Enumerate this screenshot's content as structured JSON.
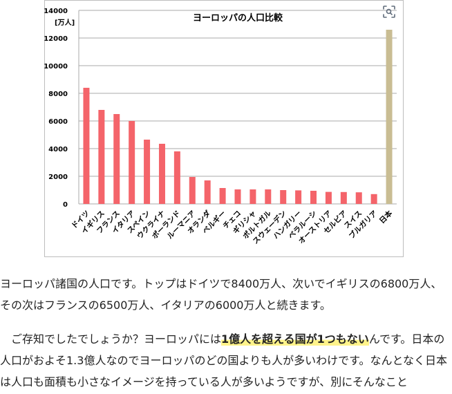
{
  "chart_data": {
    "type": "bar",
    "title": "ヨーロッパの人口比較",
    "ylabel": "[万人]",
    "xlabel": "",
    "ylim": [
      0,
      14000
    ],
    "yticks": [
      0,
      2000,
      4000,
      6000,
      8000,
      10000,
      12000,
      14000
    ],
    "grid": true,
    "categories": [
      "ドイツ",
      "イギリス",
      "フランス",
      "イタリア",
      "スペイン",
      "ウクライナ",
      "ポーランド",
      "ルーマニア",
      "オランダ",
      "ベルギー",
      "チェコ",
      "ギリシャ",
      "ポルトガル",
      "スウェーデン",
      "ハンガリー",
      "ベラルーシ",
      "オーストリア",
      "セルビア",
      "スイス",
      "ブルガリア",
      "日本"
    ],
    "values": [
      8400,
      6800,
      6500,
      6000,
      4650,
      4350,
      3800,
      1950,
      1700,
      1150,
      1050,
      1050,
      1050,
      1000,
      980,
      950,
      870,
      860,
      840,
      710,
      12600
    ],
    "colors": {
      "europe": "#f4646a",
      "japan": "#c9bd93",
      "grid": "#a8a8a8",
      "frame": "#bdbdbd"
    }
  },
  "paragraph1": "ヨーロッパ諸国の人口です。トップはドイツで8400万人、次いでイギリスの6800万人、その次はフランスの6500万人、イタリアの6000万人と続きます。",
  "paragraph2": {
    "before": "　ご存知でしたでしょうか？ヨーロッパには",
    "highlight": "1億人を超える国が1つもない",
    "after": "んです。日本の人口がおよそ1.3億人なのでヨーロッパのどの国よりも人が多いわけです。なんとなく日本は人口も面積も小さなイメージを持っている人が多いようですが、別にそんなこと"
  },
  "icons": {
    "lens": "lens-search-icon"
  }
}
